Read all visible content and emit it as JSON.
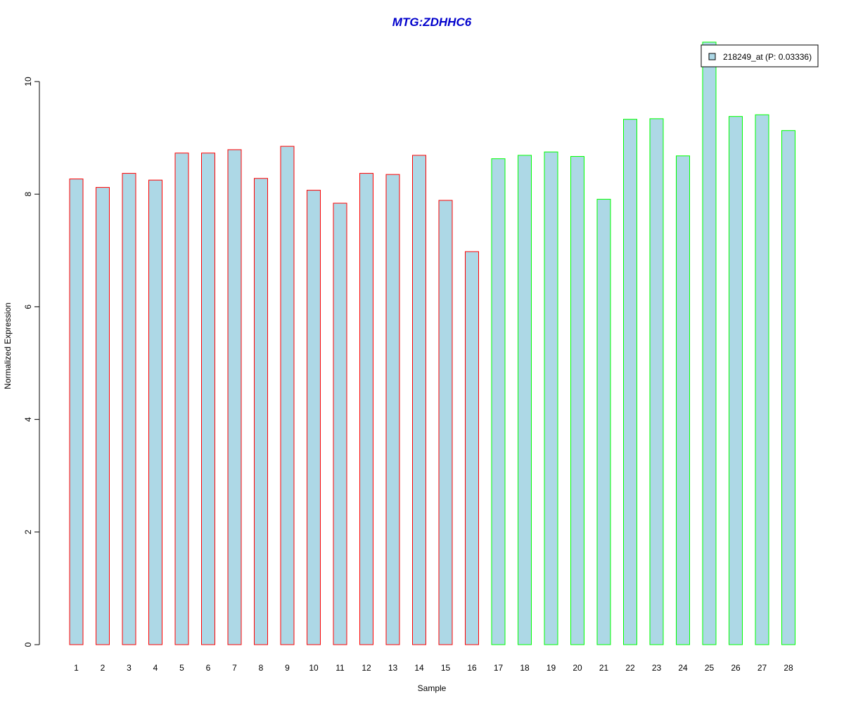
{
  "chart_data": {
    "type": "bar",
    "title": "MTG:ZDHHC6",
    "xlabel": "Sample",
    "ylabel": "Normalized Expression",
    "ylim": [
      0,
      10.7
    ],
    "yticks": [
      0,
      2,
      4,
      6,
      8,
      10
    ],
    "grid": false,
    "legend_position": "top-right",
    "categories": [
      "1",
      "2",
      "3",
      "4",
      "5",
      "6",
      "7",
      "8",
      "9",
      "10",
      "11",
      "12",
      "13",
      "14",
      "15",
      "16",
      "17",
      "18",
      "19",
      "20",
      "21",
      "22",
      "23",
      "24",
      "25",
      "26",
      "27",
      "28"
    ],
    "series": [
      {
        "name": "218249_at (P: 0.03336)",
        "values": [
          8.27,
          8.12,
          8.37,
          8.25,
          8.73,
          8.73,
          8.79,
          8.28,
          8.85,
          8.07,
          7.84,
          8.37,
          8.35,
          8.69,
          7.89,
          6.98,
          8.63,
          8.69,
          8.75,
          8.67,
          7.91,
          9.33,
          9.34,
          8.68,
          10.7,
          9.38,
          9.41,
          9.13
        ],
        "fill": "#ADD8E6"
      }
    ],
    "groups": [
      {
        "samples": [
          1,
          16
        ],
        "border_color": "#FF0000"
      },
      {
        "samples": [
          17,
          28
        ],
        "border_color": "#00FF00"
      }
    ],
    "colors": {
      "title": "#0000CC",
      "bar_fill": "#ADD8E6"
    }
  }
}
